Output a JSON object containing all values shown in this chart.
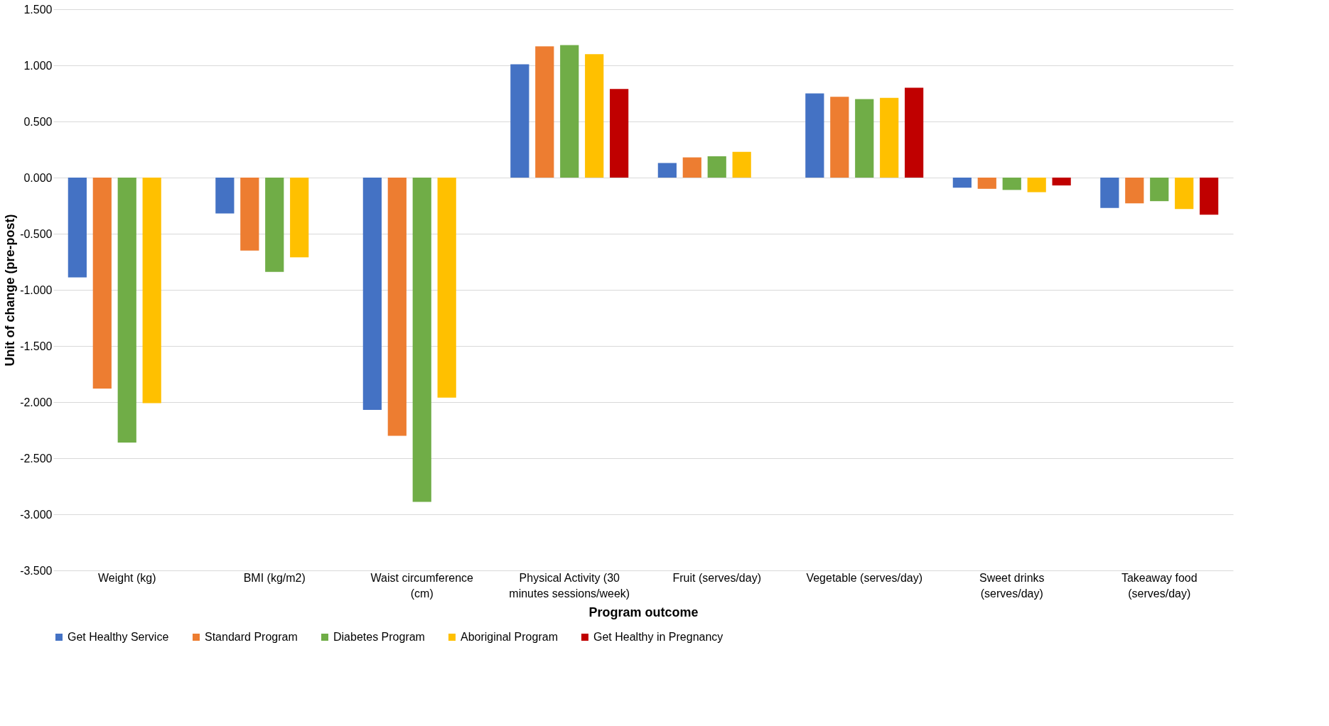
{
  "chart_data": {
    "type": "bar",
    "xlabel": "Program outcome",
    "ylabel": "Unit of change (pre-post)",
    "categories": [
      "Weight (kg)",
      "BMI (kg/m2)",
      "Waist circumference (cm)",
      "Physical Activity (30 minutes sessions/week)",
      "Fruit (serves/day)",
      "Vegetable (serves/day)",
      "Sweet drinks (serves/day)",
      "Takeaway food (serves/day)"
    ],
    "series": [
      {
        "name": "Get Healthy Service",
        "color": "#4472c4",
        "values": [
          -0.89,
          -0.32,
          -2.07,
          1.01,
          0.13,
          0.75,
          -0.09,
          -0.27
        ]
      },
      {
        "name": "Standard Program",
        "color": "#ed7d31",
        "values": [
          -1.88,
          -0.65,
          -2.3,
          1.17,
          0.18,
          0.72,
          -0.1,
          -0.23
        ]
      },
      {
        "name": "Diabetes Program",
        "color": "#70ad47",
        "values": [
          -2.36,
          -0.84,
          -2.89,
          1.18,
          0.19,
          0.7,
          -0.11,
          -0.21
        ]
      },
      {
        "name": "Aboriginal Program",
        "color": "#ffc000",
        "values": [
          -2.01,
          -0.71,
          -1.96,
          1.1,
          0.23,
          0.71,
          -0.13,
          -0.28
        ]
      },
      {
        "name": "Get Healthy in Pregnancy",
        "color": "#c00000",
        "values": [
          null,
          null,
          null,
          0.79,
          null,
          0.8,
          -0.07,
          -0.33
        ]
      }
    ],
    "ylim": [
      -3.5,
      1.5
    ],
    "yticks": [
      {
        "value": -3.5,
        "label": "-3.500"
      },
      {
        "value": -3.0,
        "label": "-3.000"
      },
      {
        "value": -2.5,
        "label": "-2.500"
      },
      {
        "value": -2.0,
        "label": "-2.000"
      },
      {
        "value": -1.5,
        "label": "-1.500"
      },
      {
        "value": -1.0,
        "label": "-1.000"
      },
      {
        "value": -0.5,
        "label": "-0.500"
      },
      {
        "value": 0,
        "label": "0.000"
      },
      {
        "value": 0.5,
        "label": "0.500"
      },
      {
        "value": 1.0,
        "label": "1.000"
      },
      {
        "value": 1.5,
        "label": "1.500"
      }
    ],
    "grid": "y",
    "legend": "bottom"
  }
}
